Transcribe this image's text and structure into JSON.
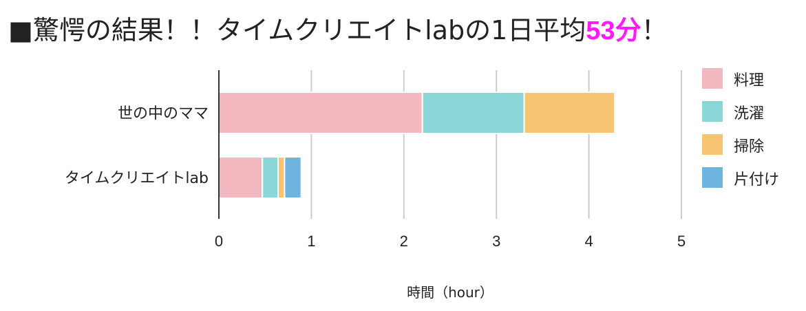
{
  "headline": {
    "prefix": "■驚愕の結果！！タイムクリエイトlabの1日平均",
    "highlight": "53分",
    "suffix": "！"
  },
  "chart_data": {
    "type": "bar",
    "orientation": "horizontal",
    "stacked": true,
    "categories": [
      "世の中のママ",
      "タイムクリエイトlab"
    ],
    "series": [
      {
        "name": "料理",
        "color": "#f4b9c0",
        "values": [
          2.2,
          0.47
        ]
      },
      {
        "name": "洗濯",
        "color": "#8bd7d8",
        "values": [
          1.1,
          0.17
        ]
      },
      {
        "name": "掃除",
        "color": "#f7c572",
        "values": [
          0.98,
          0.07
        ]
      },
      {
        "name": "片付け",
        "color": "#6db5df",
        "values": [
          0,
          0.18
        ]
      }
    ],
    "xlabel": "時間（hour）",
    "ylabel": "",
    "xlim": [
      0,
      5
    ],
    "xticks": [
      "0",
      "1",
      "2",
      "3",
      "4",
      "5"
    ],
    "grid": true,
    "legend_position": "right"
  }
}
